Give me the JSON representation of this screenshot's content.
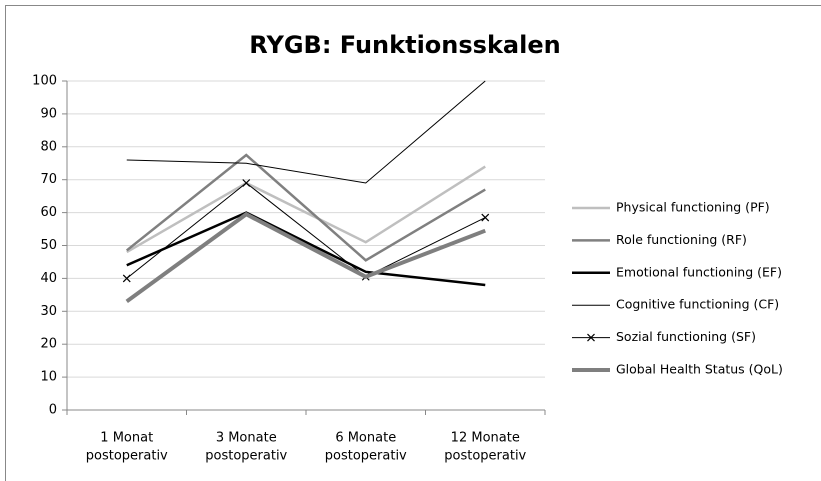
{
  "chart_data": {
    "type": "line",
    "title": "RYGB: Funktionsskalen",
    "categories": [
      [
        "1 Monat",
        "postoperativ"
      ],
      [
        "3 Monate",
        "postoperativ"
      ],
      [
        "6 Monate",
        "postoperativ"
      ],
      [
        "12 Monate",
        "postoperativ"
      ]
    ],
    "series": [
      {
        "name": "Physical functioning (PF)",
        "color": "#bfbfbf",
        "width": 2.5,
        "values": [
          48,
          69,
          51,
          74
        ]
      },
      {
        "name": "Role functioning (RF)",
        "color": "#808080",
        "width": 2.5,
        "values": [
          48.5,
          77.5,
          45.5,
          67
        ]
      },
      {
        "name": "Emotional functioning (EF)",
        "color": "#000000",
        "width": 2.5,
        "values": [
          44,
          60,
          42,
          38
        ]
      },
      {
        "name": "Cognitive functioning (CF)",
        "color": "#000000",
        "width": 1,
        "values": [
          76,
          75,
          69,
          100
        ]
      },
      {
        "name": "Sozial functioning (SF)",
        "color": "#000000",
        "width": 1,
        "marker": "x",
        "values": [
          40,
          69,
          40.5,
          58.5
        ]
      },
      {
        "name": "Global Health Status (QoL)",
        "color": "#7f7f7f",
        "width": 4,
        "values": [
          33,
          59.5,
          40.5,
          54.5
        ]
      }
    ],
    "ylim": [
      0,
      100
    ],
    "yticks": [
      0,
      10,
      20,
      30,
      40,
      50,
      60,
      70,
      80,
      90,
      100
    ],
    "grid": true,
    "legend": "right"
  }
}
